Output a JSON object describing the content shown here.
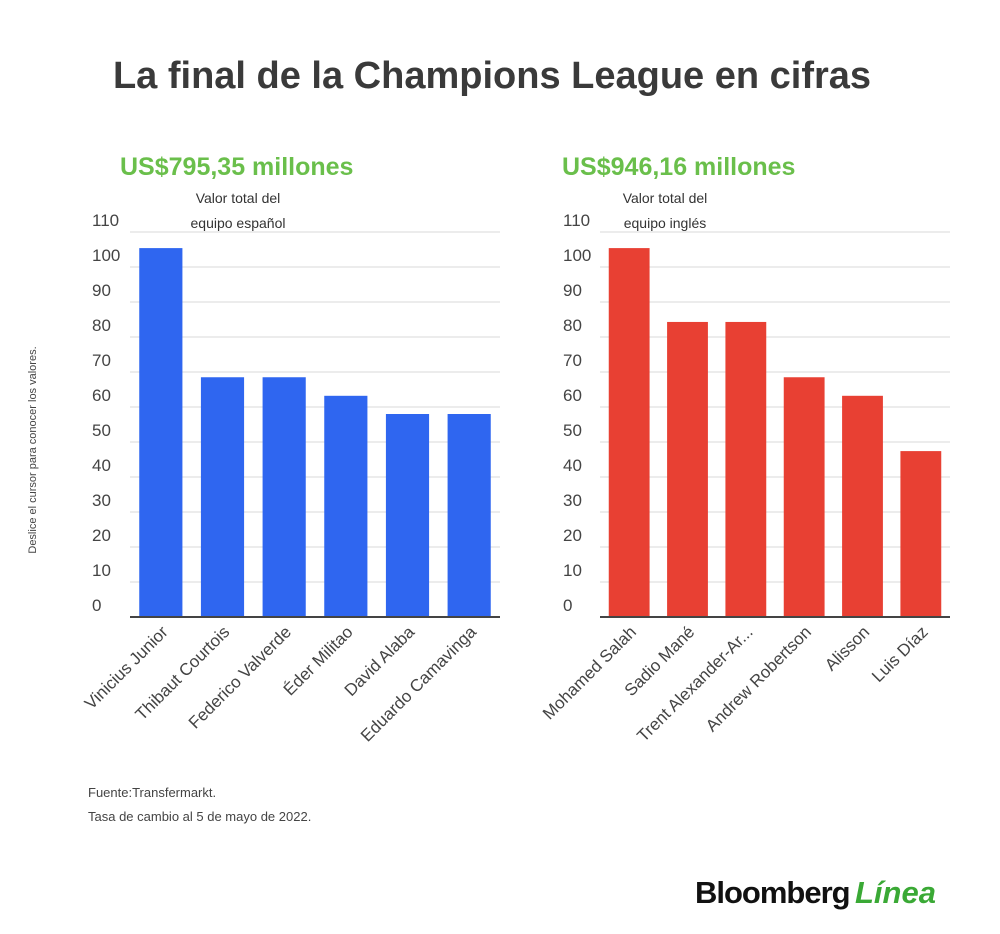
{
  "title": "La final de la Champions League en cifras",
  "side_note": "Deslice el cursor para conocer los valores.",
  "source": "Fuente:Transfermarkt.",
  "note": "Tasa de cambio al 5 de mayo de 2022.",
  "logo": {
    "brand": "Bloomberg",
    "suffix": "Línea"
  },
  "chart_data": [
    {
      "type": "bar",
      "headline": "US$795,35 millones",
      "subtitle": [
        "Valor total del",
        "equipo español"
      ],
      "categories": [
        "Vinicius Junior",
        "Thibaut Courtois",
        "Federico Valverde",
        "Éder Militao",
        "David Alaba",
        "Eduardo Camavinga"
      ],
      "values": [
        105.4,
        68.5,
        68.5,
        63.2,
        58,
        58
      ],
      "color": "#2f66f0",
      "ylim": [
        0,
        110
      ],
      "yticks": [
        0,
        10,
        20,
        30,
        40,
        50,
        60,
        70,
        80,
        90,
        100,
        110
      ],
      "grid": true
    },
    {
      "type": "bar",
      "headline": "US$946,16 millones",
      "subtitle": [
        "Valor total del",
        "equipo inglés"
      ],
      "categories": [
        "Mohamed Salah",
        "Sadio Mané",
        "Trent Alexander-Ar...",
        "Andrew Robertson",
        "Alisson",
        "Luis Díaz"
      ],
      "values": [
        105.4,
        84.3,
        84.3,
        68.5,
        63.2,
        47.4
      ],
      "color": "#e84033",
      "ylim": [
        0,
        110
      ],
      "yticks": [
        0,
        10,
        20,
        30,
        40,
        50,
        60,
        70,
        80,
        90,
        100,
        110
      ],
      "grid": true
    }
  ]
}
